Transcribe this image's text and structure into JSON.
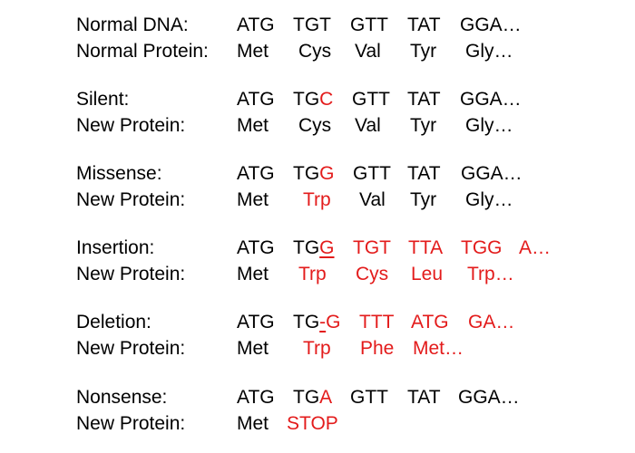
{
  "rows": [
    {
      "label": "Normal DNA:",
      "tokens": [
        {
          "parts": [
            {
              "t": "ATG"
            }
          ]
        },
        {
          "parts": [
            {
              "t": "TGT"
            }
          ]
        },
        {
          "parts": [
            {
              "t": "GTT"
            }
          ]
        },
        {
          "parts": [
            {
              "t": "TAT"
            }
          ]
        },
        {
          "parts": [
            {
              "t": "GGA…"
            }
          ]
        }
      ]
    },
    {
      "label": "Normal Protein:",
      "tokens": [
        {
          "parts": [
            {
              "t": "Met"
            }
          ]
        },
        {
          "parts": [
            {
              "t": "Cys"
            }
          ]
        },
        {
          "parts": [
            {
              "t": "Val"
            }
          ]
        },
        {
          "parts": [
            {
              "t": "Tyr"
            }
          ]
        },
        {
          "parts": [
            {
              "t": "Gly…"
            }
          ]
        }
      ]
    },
    {
      "label": "Silent:",
      "tokens": [
        {
          "parts": [
            {
              "t": "ATG"
            }
          ]
        },
        {
          "parts": [
            {
              "t": "TG"
            },
            {
              "t": "C",
              "red": true
            }
          ]
        },
        {
          "parts": [
            {
              "t": "GTT"
            }
          ]
        },
        {
          "parts": [
            {
              "t": "TAT"
            }
          ]
        },
        {
          "parts": [
            {
              "t": "GGA…"
            }
          ]
        }
      ]
    },
    {
      "label": "New Protein:",
      "tokens": [
        {
          "parts": [
            {
              "t": "Met"
            }
          ]
        },
        {
          "parts": [
            {
              "t": "Cys"
            }
          ]
        },
        {
          "parts": [
            {
              "t": "Val"
            }
          ]
        },
        {
          "parts": [
            {
              "t": "Tyr"
            }
          ]
        },
        {
          "parts": [
            {
              "t": "Gly…"
            }
          ]
        }
      ]
    },
    {
      "label": "Missense:",
      "tokens": [
        {
          "parts": [
            {
              "t": "ATG"
            }
          ]
        },
        {
          "parts": [
            {
              "t": "TG"
            },
            {
              "t": "G",
              "red": true
            }
          ]
        },
        {
          "parts": [
            {
              "t": "GTT"
            }
          ]
        },
        {
          "parts": [
            {
              "t": "TAT"
            }
          ]
        },
        {
          "parts": [
            {
              "t": "GGA…"
            }
          ]
        }
      ]
    },
    {
      "label": "New Protein:",
      "tokens": [
        {
          "parts": [
            {
              "t": "Met"
            }
          ]
        },
        {
          "parts": [
            {
              "t": "Trp",
              "red": true
            }
          ]
        },
        {
          "parts": [
            {
              "t": "Val"
            }
          ]
        },
        {
          "parts": [
            {
              "t": "Tyr"
            }
          ]
        },
        {
          "parts": [
            {
              "t": "Gly…"
            }
          ]
        }
      ]
    },
    {
      "label": "Insertion:",
      "tokens": [
        {
          "parts": [
            {
              "t": "ATG"
            }
          ]
        },
        {
          "parts": [
            {
              "t": "TG"
            },
            {
              "t": "G",
              "red": true,
              "underline": true
            }
          ]
        },
        {
          "parts": [
            {
              "t": "TGT",
              "red": true
            }
          ]
        },
        {
          "parts": [
            {
              "t": "TTA",
              "red": true
            }
          ]
        },
        {
          "parts": [
            {
              "t": "TGG",
              "red": true
            }
          ]
        },
        {
          "parts": [
            {
              "t": "A…",
              "red": true
            }
          ]
        }
      ]
    },
    {
      "label": "New Protein:",
      "tokens": [
        {
          "parts": [
            {
              "t": "Met"
            }
          ]
        },
        {
          "parts": [
            {
              "t": "Trp",
              "red": true
            }
          ]
        },
        {
          "parts": [
            {
              "t": "Cys",
              "red": true
            }
          ]
        },
        {
          "parts": [
            {
              "t": "Leu",
              "red": true
            }
          ]
        },
        {
          "parts": [
            {
              "t": "Trp…",
              "red": true
            }
          ]
        }
      ]
    },
    {
      "label": "Deletion:",
      "tokens": [
        {
          "parts": [
            {
              "t": "ATG"
            }
          ]
        },
        {
          "parts": [
            {
              "t": "TG"
            },
            {
              "t": "-",
              "red": true,
              "underline": true
            },
            {
              "t": "G",
              "red": true
            }
          ]
        },
        {
          "parts": [
            {
              "t": "TTT",
              "red": true
            }
          ]
        },
        {
          "parts": [
            {
              "t": "ATG",
              "red": true
            }
          ]
        },
        {
          "parts": [
            {
              "t": "GA…",
              "red": true
            }
          ]
        }
      ]
    },
    {
      "label": "New Protein:",
      "tokens": [
        {
          "parts": [
            {
              "t": "Met"
            }
          ]
        },
        {
          "parts": [
            {
              "t": "Trp",
              "red": true
            }
          ]
        },
        {
          "parts": [
            {
              "t": "Phe",
              "red": true
            }
          ]
        },
        {
          "parts": [
            {
              "t": "Met…",
              "red": true
            }
          ]
        }
      ]
    },
    {
      "label": "Nonsense:",
      "tokens": [
        {
          "parts": [
            {
              "t": "ATG"
            }
          ]
        },
        {
          "parts": [
            {
              "t": "TG"
            },
            {
              "t": "A",
              "red": true
            }
          ]
        },
        {
          "parts": [
            {
              "t": "GTT"
            }
          ]
        },
        {
          "parts": [
            {
              "t": "TAT"
            }
          ]
        },
        {
          "parts": [
            {
              "t": "GGA…"
            }
          ]
        }
      ]
    },
    {
      "label": "New Protein:",
      "tokens": [
        {
          "parts": [
            {
              "t": "Met"
            }
          ]
        },
        {
          "parts": [
            {
              "t": "STOP",
              "red": true
            }
          ]
        }
      ]
    }
  ],
  "colors": {
    "text": "#000000",
    "highlight": "#e31b1b"
  }
}
